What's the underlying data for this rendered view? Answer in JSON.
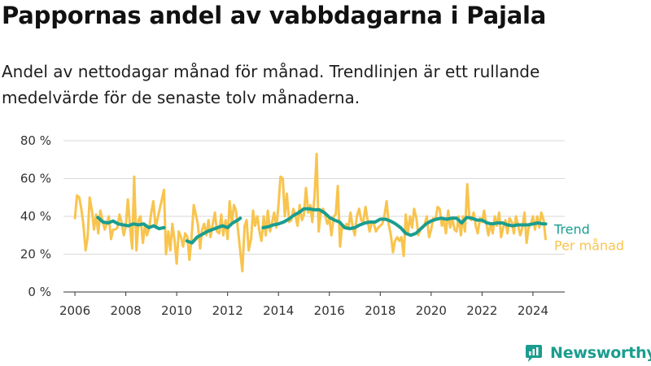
{
  "title": "Pappornas andel av vabbdagarna i Pajala",
  "subtitle": "Andel av nettodagar månad för månad. Trendlinjen är ett rullande medelvärde för de senaste tolv månaderna.",
  "brand": {
    "name": "Newsworthy",
    "icon": "newsworthy-logo-icon"
  },
  "colors": {
    "monthly": "#f8c44e",
    "trend": "#1a9d8f",
    "grid": "#d9d9d9",
    "axis": "#333333"
  },
  "chart_data": {
    "type": "line",
    "x_unit": "year",
    "xlim": [
      2005.55,
      2025.25
    ],
    "ylim": [
      0,
      80
    ],
    "y_ticks": [
      0,
      20,
      40,
      60,
      80
    ],
    "y_tick_labels": [
      "0 %",
      "20 %",
      "40 %",
      "60 %",
      "80 %"
    ],
    "x_ticks": [
      2006,
      2008,
      2010,
      2012,
      2014,
      2016,
      2018,
      2020,
      2022,
      2024
    ],
    "x_tick_labels": [
      "2006",
      "2008",
      "2010",
      "2012",
      "2014",
      "2016",
      "2018",
      "2020",
      "2022",
      "2024"
    ],
    "grid": "horizontal",
    "legend": "right, at line ends",
    "series": [
      {
        "name": "Per månad",
        "points": [
          [
            2006.0,
            39
          ],
          [
            2006.08,
            51
          ],
          [
            2006.17,
            50
          ],
          [
            2006.25,
            44
          ],
          [
            2006.33,
            36
          ],
          [
            2006.42,
            22
          ],
          [
            2006.5,
            29
          ],
          [
            2006.58,
            50
          ],
          [
            2006.67,
            43
          ],
          [
            2006.75,
            33
          ],
          [
            2006.83,
            41
          ],
          [
            2006.92,
            31
          ],
          [
            2007.0,
            43
          ],
          [
            2007.08,
            38
          ],
          [
            2007.17,
            33
          ],
          [
            2007.25,
            36
          ],
          [
            2007.33,
            40
          ],
          [
            2007.42,
            28
          ],
          [
            2007.5,
            33
          ],
          [
            2007.58,
            33
          ],
          [
            2007.67,
            34
          ],
          [
            2007.75,
            41
          ],
          [
            2007.83,
            37
          ],
          [
            2007.92,
            30
          ],
          [
            2008.0,
            35
          ],
          [
            2008.08,
            49
          ],
          [
            2008.17,
            34
          ],
          [
            2008.25,
            23
          ],
          [
            2008.33,
            61
          ],
          [
            2008.42,
            22
          ],
          [
            2008.5,
            38
          ],
          [
            2008.58,
            40
          ],
          [
            2008.67,
            26
          ],
          [
            2008.75,
            35
          ],
          [
            2008.83,
            30
          ],
          [
            2008.92,
            34
          ],
          [
            2009.0,
            42
          ],
          [
            2009.08,
            48
          ],
          [
            2009.17,
            34
          ],
          [
            2009.5,
            54
          ],
          [
            2009.58,
            20
          ],
          [
            2009.67,
            32
          ],
          [
            2009.75,
            22
          ],
          [
            2009.83,
            36
          ],
          [
            2009.92,
            27
          ],
          [
            2010.0,
            15
          ],
          [
            2010.08,
            32
          ],
          [
            2010.17,
            29
          ],
          [
            2010.25,
            24
          ],
          [
            2010.33,
            31
          ],
          [
            2010.42,
            29
          ],
          [
            2010.5,
            17
          ],
          [
            2010.58,
            28
          ],
          [
            2010.67,
            46
          ],
          [
            2010.75,
            41
          ],
          [
            2010.83,
            36
          ],
          [
            2010.92,
            23
          ],
          [
            2011.0,
            33
          ],
          [
            2011.08,
            36
          ],
          [
            2011.17,
            30
          ],
          [
            2011.25,
            38
          ],
          [
            2011.33,
            29
          ],
          [
            2011.42,
            36
          ],
          [
            2011.5,
            42
          ],
          [
            2011.58,
            32
          ],
          [
            2011.67,
            31
          ],
          [
            2011.75,
            41
          ],
          [
            2011.83,
            30
          ],
          [
            2011.92,
            38
          ],
          [
            2012.0,
            28
          ],
          [
            2012.08,
            48
          ],
          [
            2012.17,
            36
          ],
          [
            2012.25,
            46
          ],
          [
            2012.33,
            43
          ],
          [
            2012.58,
            11
          ],
          [
            2012.67,
            35
          ],
          [
            2012.75,
            38
          ],
          [
            2012.83,
            22
          ],
          [
            2012.92,
            28
          ],
          [
            2013.0,
            43
          ],
          [
            2013.08,
            35
          ],
          [
            2013.17,
            40
          ],
          [
            2013.25,
            32
          ],
          [
            2013.33,
            27
          ],
          [
            2013.42,
            40
          ],
          [
            2013.5,
            30
          ],
          [
            2013.58,
            43
          ],
          [
            2013.67,
            32
          ],
          [
            2013.75,
            37
          ],
          [
            2013.83,
            42
          ],
          [
            2013.92,
            34
          ],
          [
            2014.0,
            46
          ],
          [
            2014.08,
            61
          ],
          [
            2014.17,
            60
          ],
          [
            2014.25,
            40
          ],
          [
            2014.33,
            52
          ],
          [
            2014.42,
            37
          ],
          [
            2014.5,
            38
          ],
          [
            2014.58,
            44
          ],
          [
            2014.67,
            40
          ],
          [
            2014.75,
            35
          ],
          [
            2014.83,
            46
          ],
          [
            2014.92,
            38
          ],
          [
            2015.0,
            41
          ],
          [
            2015.08,
            55
          ],
          [
            2015.17,
            42
          ],
          [
            2015.25,
            46
          ],
          [
            2015.33,
            37
          ],
          [
            2015.42,
            51
          ],
          [
            2015.5,
            73
          ],
          [
            2015.58,
            32
          ],
          [
            2015.67,
            43
          ],
          [
            2015.75,
            44
          ],
          [
            2015.83,
            41
          ],
          [
            2015.92,
            36
          ],
          [
            2016.0,
            39
          ],
          [
            2016.08,
            30
          ],
          [
            2016.17,
            40
          ],
          [
            2016.25,
            41
          ],
          [
            2016.33,
            56
          ],
          [
            2016.42,
            24
          ],
          [
            2016.5,
            35
          ],
          [
            2016.58,
            34
          ],
          [
            2016.67,
            36
          ],
          [
            2016.75,
            34
          ],
          [
            2016.83,
            42
          ],
          [
            2016.92,
            34
          ],
          [
            2017.0,
            30
          ],
          [
            2017.08,
            40
          ],
          [
            2017.17,
            44
          ],
          [
            2017.25,
            38
          ],
          [
            2017.33,
            37
          ],
          [
            2017.42,
            45
          ],
          [
            2017.5,
            38
          ],
          [
            2017.58,
            32
          ],
          [
            2017.67,
            37
          ],
          [
            2017.75,
            36
          ],
          [
            2017.83,
            32
          ],
          [
            2017.92,
            34
          ],
          [
            2018.0,
            35
          ],
          [
            2018.08,
            36
          ],
          [
            2018.17,
            41
          ],
          [
            2018.25,
            48
          ],
          [
            2018.33,
            36
          ],
          [
            2018.42,
            30
          ],
          [
            2018.5,
            21
          ],
          [
            2018.58,
            27
          ],
          [
            2018.67,
            29
          ],
          [
            2018.75,
            27
          ],
          [
            2018.83,
            29
          ],
          [
            2018.92,
            19
          ],
          [
            2019.0,
            41
          ],
          [
            2019.08,
            31
          ],
          [
            2019.17,
            40
          ],
          [
            2019.25,
            34
          ],
          [
            2019.33,
            44
          ],
          [
            2019.42,
            39
          ],
          [
            2019.5,
            30
          ],
          [
            2019.58,
            33
          ],
          [
            2019.67,
            34
          ],
          [
            2019.75,
            36
          ],
          [
            2019.83,
            40
          ],
          [
            2019.92,
            29
          ],
          [
            2020.0,
            33
          ],
          [
            2020.08,
            39
          ],
          [
            2020.17,
            38
          ],
          [
            2020.25,
            45
          ],
          [
            2020.33,
            44
          ],
          [
            2020.42,
            35
          ],
          [
            2020.5,
            38
          ],
          [
            2020.58,
            31
          ],
          [
            2020.67,
            43
          ],
          [
            2020.75,
            34
          ],
          [
            2020.83,
            39
          ],
          [
            2020.92,
            33
          ],
          [
            2021.0,
            32
          ],
          [
            2021.08,
            40
          ],
          [
            2021.17,
            30
          ],
          [
            2021.25,
            40
          ],
          [
            2021.33,
            32
          ],
          [
            2021.42,
            57
          ],
          [
            2021.5,
            40
          ],
          [
            2021.58,
            38
          ],
          [
            2021.67,
            42
          ],
          [
            2021.75,
            35
          ],
          [
            2021.83,
            31
          ],
          [
            2021.92,
            39
          ],
          [
            2022.0,
            37
          ],
          [
            2022.08,
            43
          ],
          [
            2022.17,
            36
          ],
          [
            2022.25,
            30
          ],
          [
            2022.33,
            36
          ],
          [
            2022.42,
            31
          ],
          [
            2022.5,
            40
          ],
          [
            2022.58,
            35
          ],
          [
            2022.67,
            42
          ],
          [
            2022.75,
            29
          ],
          [
            2022.83,
            34
          ],
          [
            2022.92,
            38
          ],
          [
            2023.0,
            31
          ],
          [
            2023.08,
            39
          ],
          [
            2023.17,
            37
          ],
          [
            2023.25,
            31
          ],
          [
            2023.33,
            40
          ],
          [
            2023.42,
            35
          ],
          [
            2023.5,
            30
          ],
          [
            2023.58,
            34
          ],
          [
            2023.67,
            42
          ],
          [
            2023.75,
            26
          ],
          [
            2023.83,
            34
          ],
          [
            2023.92,
            36
          ],
          [
            2024.0,
            40
          ],
          [
            2024.08,
            33
          ],
          [
            2024.17,
            40
          ],
          [
            2024.25,
            34
          ],
          [
            2024.33,
            42
          ],
          [
            2024.42,
            38
          ],
          [
            2024.5,
            28
          ]
        ]
      },
      {
        "name": "Trend",
        "points": [
          [
            2006.9,
            39.5
          ],
          [
            2007.1,
            37
          ],
          [
            2007.3,
            36.5
          ],
          [
            2007.5,
            37.5
          ],
          [
            2007.7,
            36
          ],
          [
            2007.9,
            35.5
          ],
          [
            2008.1,
            35
          ],
          [
            2008.3,
            36
          ],
          [
            2008.5,
            35.5
          ],
          [
            2008.7,
            36
          ],
          [
            2008.9,
            34
          ],
          [
            2009.1,
            35
          ],
          [
            2009.3,
            33.5
          ],
          [
            2009.5,
            34
          ],
          null,
          [
            2010.4,
            27
          ],
          [
            2010.6,
            26
          ],
          [
            2010.8,
            29
          ],
          [
            2011.0,
            30.5
          ],
          [
            2011.2,
            32
          ],
          [
            2011.4,
            33
          ],
          [
            2011.6,
            34
          ],
          [
            2011.8,
            35
          ],
          [
            2012.0,
            34
          ],
          [
            2012.2,
            36.5
          ],
          [
            2012.4,
            38
          ],
          [
            2012.5,
            39
          ],
          null,
          [
            2013.4,
            34
          ],
          [
            2013.6,
            34.5
          ],
          [
            2013.8,
            35.5
          ],
          [
            2014.0,
            36
          ],
          [
            2014.2,
            37
          ],
          [
            2014.4,
            38.5
          ],
          [
            2014.6,
            40.5
          ],
          [
            2014.8,
            42
          ],
          [
            2015.0,
            44
          ],
          [
            2015.2,
            44
          ],
          [
            2015.4,
            43.5
          ],
          [
            2015.6,
            43.5
          ],
          [
            2015.8,
            42
          ],
          [
            2016.0,
            39.5
          ],
          [
            2016.2,
            38
          ],
          [
            2016.4,
            37
          ],
          [
            2016.6,
            34
          ],
          [
            2016.8,
            33.5
          ],
          [
            2017.0,
            34
          ],
          [
            2017.2,
            35.5
          ],
          [
            2017.4,
            36.5
          ],
          [
            2017.6,
            37
          ],
          [
            2017.8,
            37
          ],
          [
            2018.0,
            38.5
          ],
          [
            2018.2,
            38.5
          ],
          [
            2018.4,
            37.5
          ],
          [
            2018.6,
            36
          ],
          [
            2018.8,
            34
          ],
          [
            2019.0,
            31
          ],
          [
            2019.2,
            30
          ],
          [
            2019.4,
            31
          ],
          [
            2019.6,
            33.5
          ],
          [
            2019.8,
            36
          ],
          [
            2020.0,
            37.5
          ],
          [
            2020.2,
            38.5
          ],
          [
            2020.4,
            39
          ],
          [
            2020.6,
            38.5
          ],
          [
            2020.8,
            39
          ],
          [
            2021.0,
            39
          ],
          [
            2021.2,
            36.5
          ],
          [
            2021.4,
            39.5
          ],
          [
            2021.6,
            39
          ],
          [
            2021.8,
            38
          ],
          [
            2022.0,
            38
          ],
          [
            2022.2,
            36.5
          ],
          [
            2022.4,
            36
          ],
          [
            2022.6,
            36.5
          ],
          [
            2022.8,
            36.5
          ],
          [
            2023.0,
            35.5
          ],
          [
            2023.2,
            35
          ],
          [
            2023.4,
            35.5
          ],
          [
            2023.6,
            35.5
          ],
          [
            2023.8,
            35.5
          ],
          [
            2024.0,
            36
          ],
          [
            2024.2,
            36.5
          ],
          [
            2024.4,
            36
          ],
          [
            2024.5,
            36
          ]
        ]
      }
    ]
  }
}
